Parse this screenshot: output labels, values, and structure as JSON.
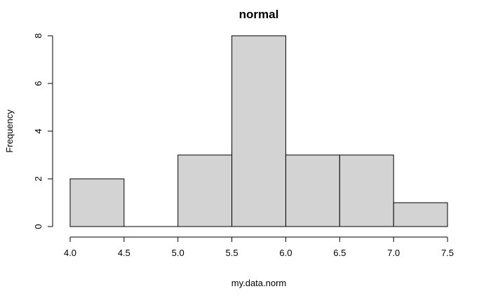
{
  "chart_data": {
    "type": "bar",
    "title": "normal",
    "xlabel": "my.data.norm",
    "ylabel": "Frequency",
    "bins": [
      {
        "start": 4.0,
        "end": 4.5,
        "count": 2
      },
      {
        "start": 4.5,
        "end": 5.0,
        "count": 0
      },
      {
        "start": 5.0,
        "end": 5.5,
        "count": 3
      },
      {
        "start": 5.5,
        "end": 6.0,
        "count": 8
      },
      {
        "start": 6.0,
        "end": 6.5,
        "count": 3
      },
      {
        "start": 6.5,
        "end": 7.0,
        "count": 3
      },
      {
        "start": 7.0,
        "end": 7.5,
        "count": 1
      }
    ],
    "xlim": [
      4.0,
      7.5
    ],
    "ylim": [
      0,
      8
    ],
    "x_ticks": [
      "4.0",
      "4.5",
      "5.0",
      "5.5",
      "6.0",
      "6.5",
      "7.0",
      "7.5"
    ],
    "y_ticks": [
      "0",
      "2",
      "4",
      "6",
      "8"
    ],
    "bar_color": "#d3d3d3",
    "grid": false,
    "legend": "none"
  }
}
